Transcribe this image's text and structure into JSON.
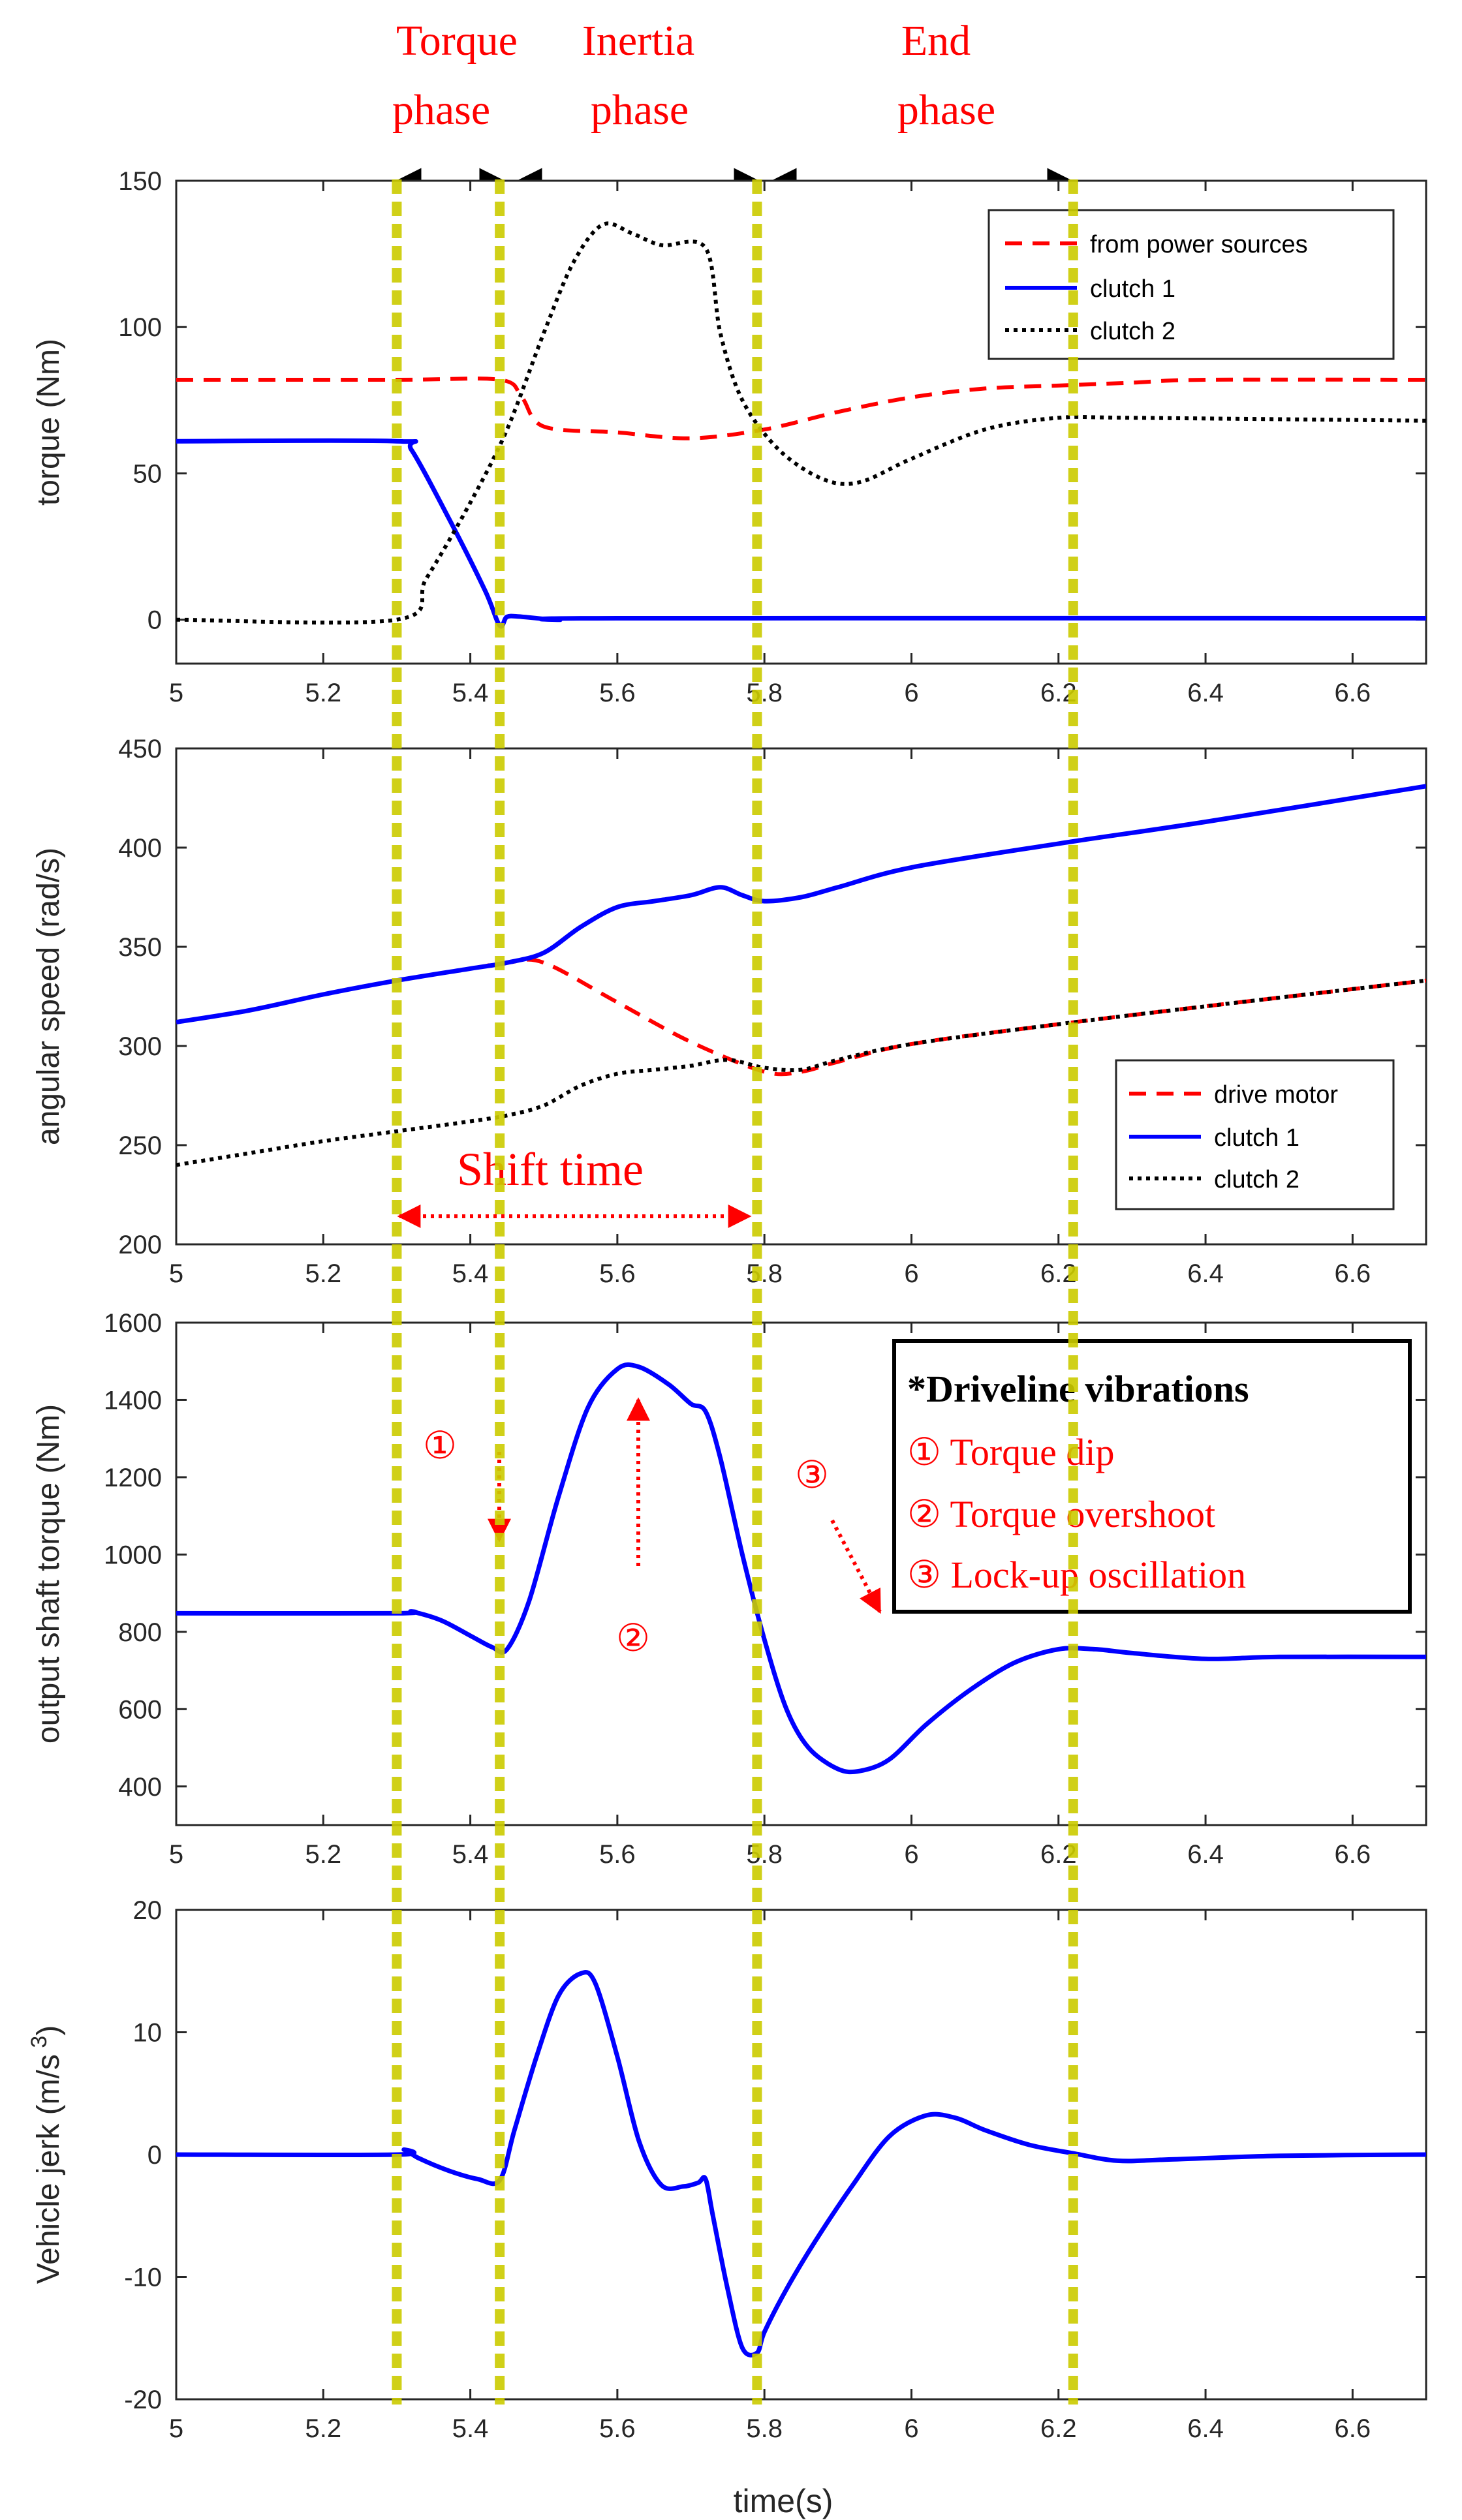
{
  "chart_data": [
    {
      "type": "line",
      "ylabel": "torque (Nm)",
      "xlabel": "",
      "xlim": [
        5,
        6.7
      ],
      "ylim": [
        -15,
        150
      ],
      "xticks": [
        5,
        5.2,
        5.4,
        5.6,
        5.8,
        6,
        6.2,
        6.4,
        6.6
      ],
      "xtick_labels": [
        "5",
        "5.2",
        "5.4",
        "5.6",
        "5.8",
        "6",
        "6.2",
        "6.4",
        "6.6"
      ],
      "yticks": [
        0,
        50,
        100,
        150
      ],
      "ytick_labels": [
        "0",
        "50",
        "100",
        "150"
      ],
      "legend_position": "top-right",
      "series": [
        {
          "name": "from power sources",
          "color": "#ff0000",
          "style": "dashed",
          "x": [
            5,
            5.3,
            5.44,
            5.47,
            5.5,
            5.6,
            5.7,
            5.8,
            5.9,
            6.0,
            6.1,
            6.2,
            6.3,
            6.4,
            6.7
          ],
          "y": [
            82,
            82,
            82,
            76,
            66,
            64,
            62,
            65,
            71,
            76,
            79,
            80,
            81,
            82,
            82
          ]
        },
        {
          "name": "clutch 1",
          "color": "#0000ff",
          "style": "solid",
          "x": [
            5,
            5.3,
            5.32,
            5.37,
            5.42,
            5.44,
            5.45,
            5.47,
            5.52,
            5.6,
            6.7
          ],
          "y": [
            61,
            61,
            58,
            35,
            10,
            -2,
            1,
            1,
            0,
            0.5,
            0.5
          ]
        },
        {
          "name": "clutch 2",
          "color": "#000000",
          "style": "dotted",
          "x": [
            5,
            5.3,
            5.34,
            5.4,
            5.45,
            5.5,
            5.54,
            5.58,
            5.62,
            5.66,
            5.72,
            5.74,
            5.77,
            5.82,
            5.88,
            5.93,
            6.0,
            6.1,
            6.2,
            6.3,
            6.7
          ],
          "y": [
            0,
            0,
            14,
            40,
            65,
            98,
            122,
            135,
            132,
            128,
            127,
            98,
            75,
            58,
            48,
            47,
            55,
            65,
            69,
            69,
            68
          ]
        }
      ]
    },
    {
      "type": "line",
      "ylabel": "angular speed (rad/s)",
      "xlabel": "",
      "xlim": [
        5,
        6.7
      ],
      "ylim": [
        200,
        450
      ],
      "xticks": [
        5,
        5.2,
        5.4,
        5.6,
        5.8,
        6,
        6.2,
        6.4,
        6.6
      ],
      "xtick_labels": [
        "5",
        "5.2",
        "5.4",
        "5.6",
        "5.8",
        "6",
        "6.2",
        "6.4",
        "6.6"
      ],
      "yticks": [
        200,
        250,
        300,
        350,
        400,
        450
      ],
      "ytick_labels": [
        "200",
        "250",
        "300",
        "350",
        "400",
        "450"
      ],
      "legend_position": "bottom-right",
      "series": [
        {
          "name": "drive motor",
          "color": "#ff0000",
          "style": "dashed",
          "x": [
            5,
            5.1,
            5.2,
            5.3,
            5.4,
            5.45,
            5.5,
            5.6,
            5.7,
            5.8,
            5.85,
            5.9,
            6.0,
            6.2,
            6.4,
            6.7
          ],
          "y": [
            312,
            318,
            326,
            333,
            339,
            342,
            342,
            322,
            302,
            287,
            287,
            292,
            301,
            311,
            320,
            333
          ]
        },
        {
          "name": "clutch 1",
          "color": "#0000ff",
          "style": "solid",
          "x": [
            5,
            5.1,
            5.2,
            5.3,
            5.4,
            5.45,
            5.5,
            5.55,
            5.6,
            5.65,
            5.7,
            5.74,
            5.77,
            5.8,
            5.85,
            5.9,
            6.0,
            6.2,
            6.4,
            6.7
          ],
          "y": [
            312,
            318,
            326,
            333,
            339,
            342,
            347,
            360,
            370,
            373,
            376,
            380,
            376,
            373,
            375,
            380,
            390,
            402,
            413,
            431
          ]
        },
        {
          "name": "clutch 2",
          "color": "#000000",
          "style": "dotted",
          "x": [
            5,
            5.1,
            5.2,
            5.3,
            5.4,
            5.45,
            5.5,
            5.55,
            5.6,
            5.65,
            5.7,
            5.75,
            5.8,
            5.85,
            5.9,
            6.0,
            6.2,
            6.4,
            6.7
          ],
          "y": [
            240,
            246,
            252,
            257,
            262,
            265,
            270,
            280,
            286,
            288,
            290,
            293,
            289,
            288,
            293,
            301,
            311,
            320,
            333
          ]
        }
      ]
    },
    {
      "type": "line",
      "ylabel": "output shaft torque (Nm)",
      "xlabel": "",
      "xlim": [
        5,
        6.7
      ],
      "ylim": [
        300,
        1600
      ],
      "xticks": [
        5,
        5.2,
        5.4,
        5.6,
        5.8,
        6,
        6.2,
        6.4,
        6.6
      ],
      "xtick_labels": [
        "5",
        "5.2",
        "5.4",
        "5.6",
        "5.8",
        "6",
        "6.2",
        "6.4",
        "6.6"
      ],
      "yticks": [
        400,
        600,
        800,
        1000,
        1200,
        1400,
        1600
      ],
      "ytick_labels": [
        "400",
        "600",
        "800",
        "1000",
        "1200",
        "1400",
        "1600"
      ],
      "series": [
        {
          "name": "output shaft torque",
          "color": "#0000ff",
          "style": "solid",
          "x": [
            5,
            5.3,
            5.32,
            5.36,
            5.4,
            5.43,
            5.45,
            5.48,
            5.52,
            5.56,
            5.6,
            5.63,
            5.67,
            5.7,
            5.72,
            5.74,
            5.77,
            5.8,
            5.83,
            5.86,
            5.9,
            5.93,
            5.97,
            6.02,
            6.08,
            6.14,
            6.2,
            6.25,
            6.3,
            6.4,
            6.5,
            6.7
          ],
          "y": [
            848,
            848,
            852,
            830,
            790,
            760,
            755,
            880,
            1150,
            1380,
            1480,
            1485,
            1440,
            1390,
            1370,
            1250,
            1000,
            780,
            600,
            500,
            445,
            440,
            470,
            560,
            650,
            720,
            755,
            755,
            745,
            730,
            735,
            735
          ]
        }
      ],
      "annotation_box": {
        "title": "*Driveline vibrations",
        "items": [
          "① Torque dip",
          "② Torque overshoot",
          "③ Lock-up oscillation"
        ]
      },
      "markers": {
        "m1": "①",
        "m2": "②",
        "m3": "③"
      }
    },
    {
      "type": "line",
      "ylabel": "Vehicle jerk  (m/s",
      "ylabel_sup": "3",
      "ylabel_close": ")",
      "xlabel": "time(s)",
      "xlim": [
        5,
        6.7
      ],
      "ylim": [
        -20,
        20
      ],
      "xticks": [
        5,
        5.2,
        5.4,
        5.6,
        5.8,
        6,
        6.2,
        6.4,
        6.6
      ],
      "xtick_labels": [
        "5",
        "5.2",
        "5.4",
        "5.6",
        "5.8",
        "6",
        "6.2",
        "6.4",
        "6.6"
      ],
      "yticks": [
        -20,
        -10,
        0,
        10,
        20
      ],
      "ytick_labels": [
        "-20",
        "-10",
        "0",
        "10",
        "20"
      ],
      "series": [
        {
          "name": "vehicle jerk",
          "color": "#0000ff",
          "style": "solid",
          "x": [
            5,
            5.3,
            5.31,
            5.33,
            5.37,
            5.41,
            5.44,
            5.46,
            5.49,
            5.52,
            5.55,
            5.57,
            5.6,
            5.63,
            5.66,
            5.69,
            5.71,
            5.72,
            5.73,
            5.75,
            5.77,
            5.79,
            5.8,
            5.83,
            5.87,
            5.92,
            5.97,
            6.02,
            6.06,
            6.1,
            6.16,
            6.22,
            6.28,
            6.35,
            6.5,
            6.7
          ],
          "y": [
            0,
            0,
            0.4,
            -0.3,
            -1.3,
            -2.0,
            -2.1,
            2,
            8,
            13,
            14.8,
            14,
            8,
            1,
            -2.5,
            -2.6,
            -2.3,
            -2,
            -5,
            -11,
            -15.8,
            -16.2,
            -14.5,
            -11,
            -7,
            -2.5,
            1.5,
            3.2,
            3.0,
            2,
            0.8,
            0.1,
            -0.5,
            -0.4,
            -0.1,
            0
          ]
        }
      ],
      "max_label": "20"
    }
  ],
  "phases": {
    "torque": [
      "Torque",
      "phase"
    ],
    "inertia": [
      "Inertia",
      "phase"
    ],
    "end": [
      "End",
      "phase"
    ],
    "boundaries_s": [
      5.3,
      5.44,
      5.79,
      6.22
    ]
  },
  "shift_time": {
    "label": "Shift time",
    "from_s": 5.3,
    "to_s": 5.77
  },
  "colors": {
    "accent_yellow": "#cccc00",
    "red": "#ff0000",
    "blue": "#0000ff",
    "black": "#000000"
  }
}
